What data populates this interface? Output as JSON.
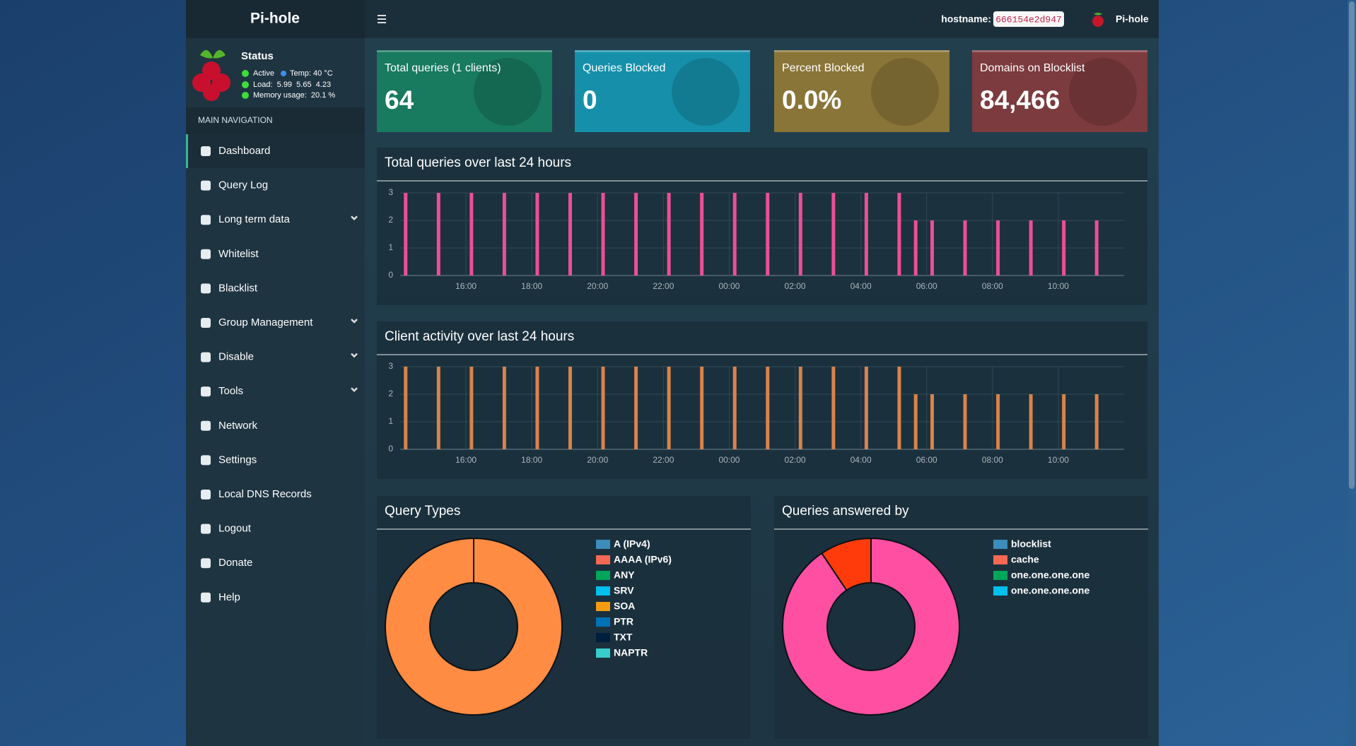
{
  "header": {
    "logo": "Pi-hole",
    "hostname_label": "hostname:",
    "hostname": "666154e2d947",
    "user": "Pi-hole"
  },
  "sidebar": {
    "status_title": "Status",
    "status": [
      "Active",
      "Temp: 40 °C",
      "Load:  5.99  5.65  4.23",
      "Memory usage:  20.1 %"
    ],
    "nav_header": "MAIN NAVIGATION",
    "nav": [
      {
        "label": "Dashboard",
        "active": true
      },
      {
        "label": "Query Log"
      },
      {
        "label": "Long term data",
        "submenu": true
      },
      {
        "label": "Whitelist"
      },
      {
        "label": "Blacklist"
      },
      {
        "label": "Group Management",
        "submenu": true
      },
      {
        "label": "Disable",
        "submenu": true
      },
      {
        "label": "Tools",
        "submenu": true
      },
      {
        "label": "Network"
      },
      {
        "label": "Settings"
      },
      {
        "label": "Local DNS Records"
      },
      {
        "label": "Logout"
      },
      {
        "label": "Donate"
      },
      {
        "label": "Help"
      }
    ]
  },
  "stats": [
    {
      "label": "Total queries (1 clients)",
      "value": "64",
      "color": "#187a5f"
    },
    {
      "label": "Queries Blocked",
      "value": "0",
      "color": "#1690aa"
    },
    {
      "label": "Percent Blocked",
      "value": "0.0%",
      "color": "#8a7538"
    },
    {
      "label": "Domains on Blocklist",
      "value": "84,466",
      "color": "#7c3b3e"
    }
  ],
  "chart_data": [
    {
      "type": "bar",
      "title": "Total queries over last 24 hours",
      "color": "#ec4f94",
      "x": [
        "14:10",
        "15:10",
        "16:10",
        "17:10",
        "18:10",
        "19:10",
        "20:10",
        "21:10",
        "22:10",
        "23:10",
        "00:10",
        "01:10",
        "02:10",
        "03:10",
        "04:10",
        "05:10",
        "05:40",
        "06:10",
        "07:10",
        "08:10",
        "09:10",
        "10:10",
        "11:10"
      ],
      "values": [
        3,
        3,
        3,
        3,
        3,
        3,
        3,
        3,
        3,
        3,
        3,
        3,
        3,
        3,
        3,
        3,
        2,
        2,
        2,
        2,
        2,
        2,
        2
      ],
      "xlim": [
        "14:00",
        "12:00"
      ],
      "xticks": [
        "16:00",
        "18:00",
        "20:00",
        "22:00",
        "00:00",
        "02:00",
        "04:00",
        "06:00",
        "08:00",
        "10:00"
      ],
      "ylim": [
        0,
        3
      ],
      "yticks": [
        0,
        1,
        2,
        3
      ],
      "grid": true
    },
    {
      "type": "bar",
      "title": "Client activity over last 24 hours",
      "color": "#d9834a",
      "x": [
        "14:10",
        "15:10",
        "16:10",
        "17:10",
        "18:10",
        "19:10",
        "20:10",
        "21:10",
        "22:10",
        "23:10",
        "00:10",
        "01:10",
        "02:10",
        "03:10",
        "04:10",
        "05:10",
        "05:40",
        "06:10",
        "07:10",
        "08:10",
        "09:10",
        "10:10",
        "11:10"
      ],
      "values": [
        3,
        3,
        3,
        3,
        3,
        3,
        3,
        3,
        3,
        3,
        3,
        3,
        3,
        3,
        3,
        3,
        2,
        2,
        2,
        2,
        2,
        2,
        2
      ],
      "xlim": [
        "14:00",
        "12:00"
      ],
      "xticks": [
        "16:00",
        "18:00",
        "20:00",
        "22:00",
        "00:00",
        "02:00",
        "04:00",
        "06:00",
        "08:00",
        "10:00"
      ],
      "ylim": [
        0,
        3
      ],
      "yticks": [
        0,
        1,
        2,
        3
      ],
      "grid": true
    },
    {
      "type": "pie",
      "title": "Query Types",
      "categories": [
        "A (IPv4)",
        "AAAA (IPv6)",
        "ANY",
        "SRV",
        "SOA",
        "PTR",
        "TXT",
        "NAPTR"
      ],
      "values": [
        100,
        0,
        0,
        0,
        0,
        0,
        0,
        0
      ],
      "legend_colors": [
        "#3c8dbc",
        "#f56954",
        "#00a65a",
        "#00c0ef",
        "#f39c12",
        "#0073b7",
        "#001f3f",
        "#39cccc"
      ],
      "colors": [
        "#ff8c42",
        "#f56954",
        "#00a65a",
        "#00c0ef",
        "#f39c12",
        "#0073b7",
        "#001f3f",
        "#39cccc"
      ]
    },
    {
      "type": "pie",
      "title": "Queries answered by",
      "categories": [
        "blocklist",
        "cache",
        "one.one.one.one",
        "one.one.one.one"
      ],
      "values": [
        0,
        90.6,
        9.4,
        0
      ],
      "legend_colors": [
        "#3c8dbc",
        "#f56954",
        "#00a65a",
        "#00c0ef"
      ],
      "colors": [
        "#3c8dbc",
        "#ff4fa3",
        "#ff3b0c",
        "#00c0ef"
      ]
    }
  ]
}
